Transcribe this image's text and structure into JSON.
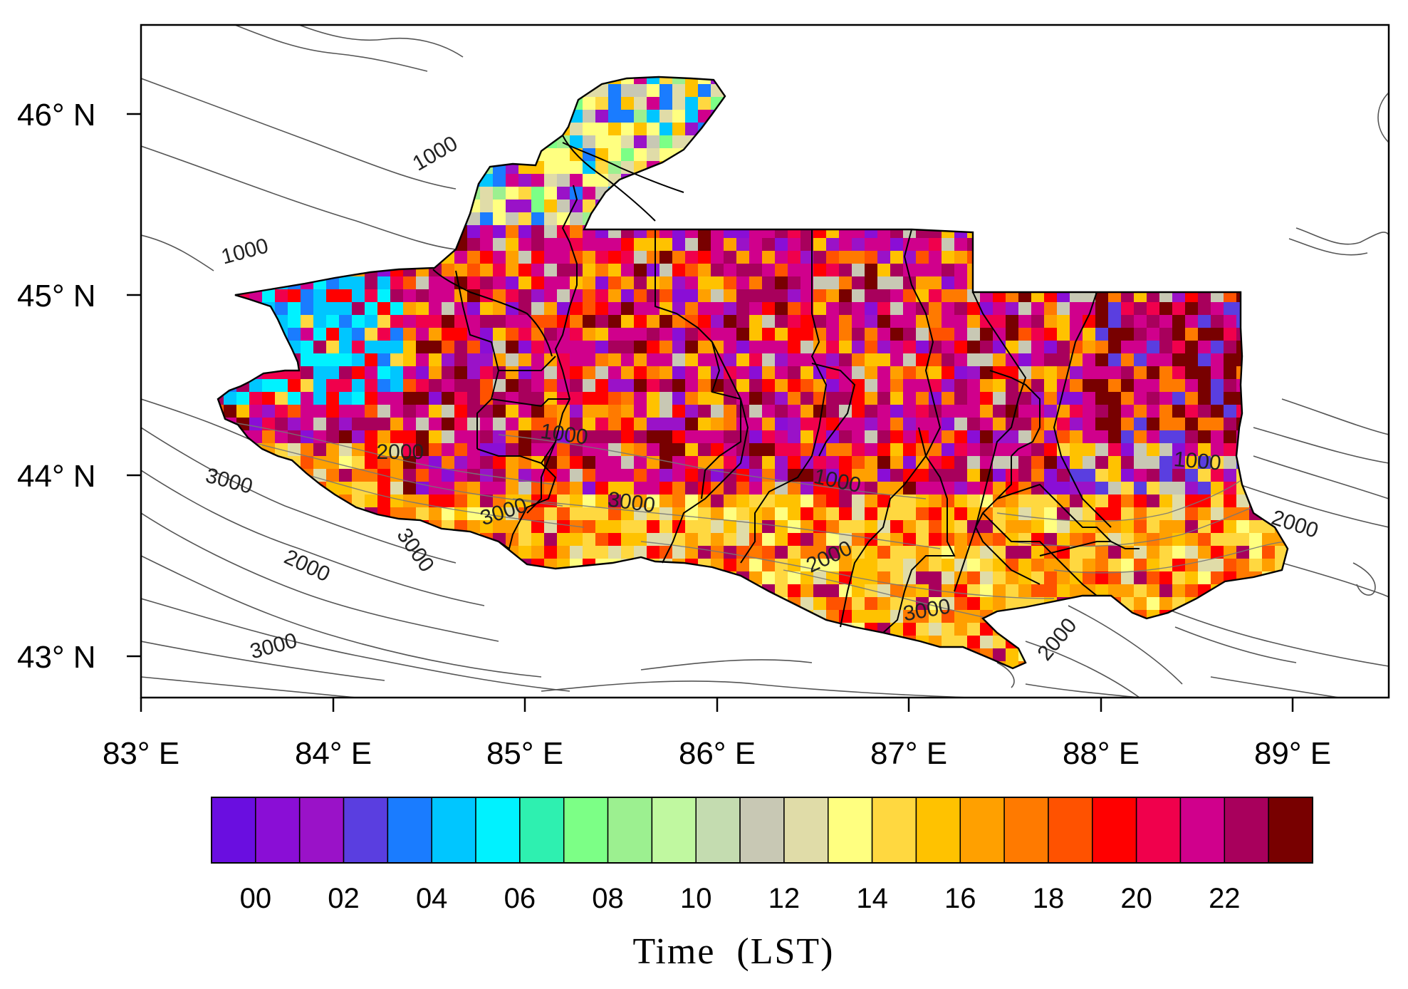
{
  "map": {
    "lat_labels": [
      "46° N",
      "45° N",
      "44° N",
      "43° N"
    ],
    "lon_labels": [
      "83° E",
      "84° E",
      "85° E",
      "86° E",
      "87° E",
      "88° E",
      "89° E"
    ],
    "lat_values": [
      46,
      45,
      44,
      43
    ],
    "lon_values": [
      83,
      84,
      85,
      86,
      87,
      88,
      89
    ],
    "lat_range": [
      42.75,
      46.5
    ],
    "lon_range": [
      83,
      89.5
    ],
    "contour_labels": [
      {
        "text": "1000",
        "lon": 84.55,
        "lat": 45.75,
        "rotate": -30
      },
      {
        "text": "1000",
        "lon": 83.55,
        "lat": 45.2,
        "rotate": -15
      },
      {
        "text": "2000",
        "lon": 84.35,
        "lat": 44.08,
        "rotate": 0
      },
      {
        "text": "3000",
        "lon": 83.45,
        "lat": 43.92,
        "rotate": 15
      },
      {
        "text": "1000",
        "lon": 85.2,
        "lat": 44.18,
        "rotate": 8
      },
      {
        "text": "3000",
        "lon": 84.9,
        "lat": 43.75,
        "rotate": -18
      },
      {
        "text": "3000",
        "lon": 85.55,
        "lat": 43.8,
        "rotate": 8
      },
      {
        "text": "3000",
        "lon": 84.4,
        "lat": 43.55,
        "rotate": 55
      },
      {
        "text": "2000",
        "lon": 83.85,
        "lat": 43.45,
        "rotate": 25
      },
      {
        "text": "3000",
        "lon": 83.7,
        "lat": 43.0,
        "rotate": -15
      },
      {
        "text": "1000",
        "lon": 86.62,
        "lat": 43.92,
        "rotate": 12
      },
      {
        "text": "2000",
        "lon": 86.6,
        "lat": 43.5,
        "rotate": -25
      },
      {
        "text": "3000",
        "lon": 87.1,
        "lat": 43.2,
        "rotate": -10
      },
      {
        "text": "2000",
        "lon": 87.8,
        "lat": 43.05,
        "rotate": -50
      },
      {
        "text": "1000",
        "lon": 88.5,
        "lat": 44.03,
        "rotate": 5
      },
      {
        "text": "2000",
        "lon": 89.0,
        "lat": 43.68,
        "rotate": 18
      }
    ]
  },
  "colorbar": {
    "title": "Time  (LST)",
    "labels": [
      "00",
      "02",
      "04",
      "06",
      "08",
      "10",
      "12",
      "14",
      "16",
      "18",
      "20",
      "22"
    ],
    "colors": [
      "#6a0ee0",
      "#8a0ed6",
      "#9a12c8",
      "#5a3ee0",
      "#1a7cff",
      "#00c6ff",
      "#00f2ff",
      "#2ef0b0",
      "#7cff86",
      "#9cf090",
      "#c0f8a0",
      "#c4dcb0",
      "#c8c8b4",
      "#e0dca8",
      "#ffff80",
      "#ffd840",
      "#ffc200",
      "#ffa000",
      "#ff7a00",
      "#ff5200",
      "#ff0000",
      "#f0004c",
      "#d0008c",
      "#a8005c",
      "#780000"
    ]
  }
}
